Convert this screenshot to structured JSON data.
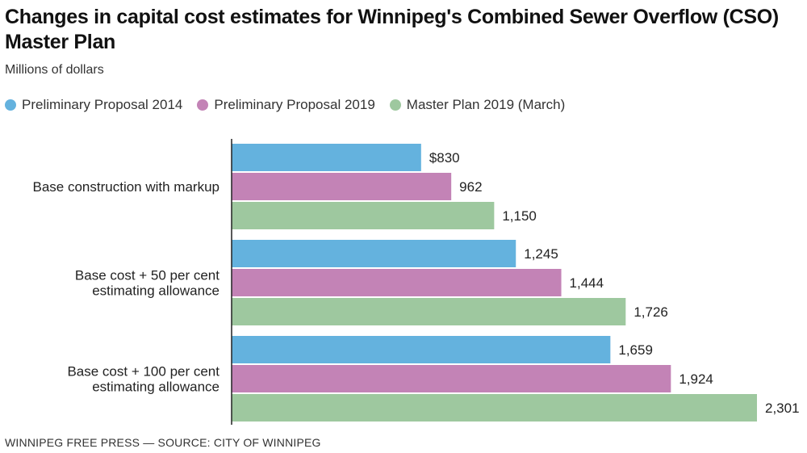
{
  "chart_data": {
    "type": "bar",
    "orientation": "horizontal",
    "title": "Changes in capital cost estimates for Winnipeg's Combined Sewer Overflow (CSO) Master Plan",
    "subtitle": "Millions of dollars",
    "xlabel": "",
    "ylabel": "",
    "xlim": [
      0,
      2301
    ],
    "legend_position": "top",
    "categories": [
      [
        "Base construction with markup"
      ],
      [
        "Base cost + 50 per cent",
        "estimating allowance"
      ],
      [
        "Base cost + 100 per cent",
        "estimating allowance"
      ]
    ],
    "series": [
      {
        "name": "Preliminary Proposal 2014",
        "color": "#64b2de",
        "values": [
          830,
          1245,
          1659
        ],
        "labels": [
          "$830",
          "1,245",
          "1,659"
        ]
      },
      {
        "name": "Preliminary Proposal 2019",
        "color": "#c383b6",
        "values": [
          962,
          1444,
          1924
        ],
        "labels": [
          "962",
          "1,444",
          "1,924"
        ]
      },
      {
        "name": "Master Plan 2019 (March)",
        "color": "#9ec89f",
        "values": [
          1150,
          1726,
          2301
        ],
        "labels": [
          "1,150",
          "1,726",
          "2,301"
        ]
      }
    ]
  },
  "footer": "WINNIPEG FREE PRESS — SOURCE: CITY OF WINNIPEG"
}
